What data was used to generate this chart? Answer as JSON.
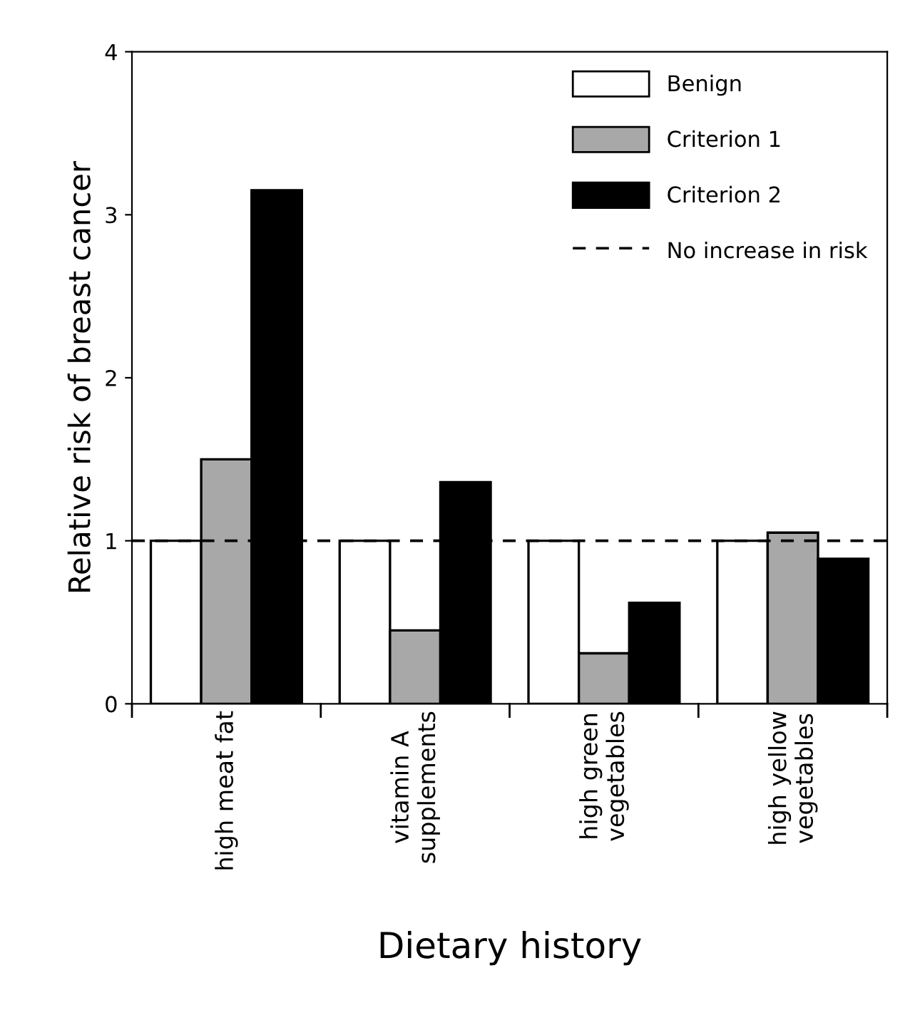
{
  "chart_data": {
    "type": "bar",
    "xlabel": "Dietary history",
    "ylabel": "Relative risk of breast cancer",
    "categories": [
      "high meat fat",
      "vitamin A\nsupplements",
      "high green\nvegetables",
      "high yellow\nvegetables"
    ],
    "series": [
      {
        "name": "Benign",
        "color": "#ffffff",
        "values": [
          1.0,
          1.0,
          1.0,
          1.0
        ]
      },
      {
        "name": "Criterion 1",
        "color": "#a8a8a8",
        "values": [
          1.5,
          0.45,
          0.31,
          1.05
        ]
      },
      {
        "name": "Criterion 2",
        "color": "#000000",
        "values": [
          3.15,
          1.36,
          0.62,
          0.89
        ]
      }
    ],
    "ylim": [
      0,
      4
    ],
    "yticks": [
      0,
      1,
      2,
      3,
      4
    ],
    "ref_lines": [
      {
        "axis": "y",
        "value": 1,
        "label": "No increase in risk",
        "color": "#000000",
        "line_style": "dashed"
      }
    ],
    "legend": "top right",
    "grid": false
  }
}
